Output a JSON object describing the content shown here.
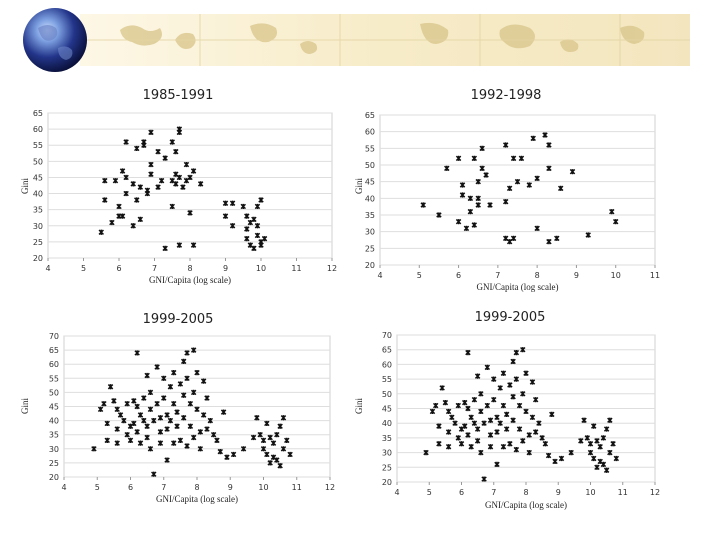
{
  "colors": {
    "banner": "#faf1d5",
    "globe_dark": "#0d1a55",
    "globe_light": "#8fb0e6",
    "marker": "#111111",
    "grid": "#dedede"
  },
  "banner": {
    "icon": "globe-icon"
  },
  "chart_data": [
    {
      "type": "scatter",
      "title": "1985-1991",
      "xlabel": "GNI/Capita (log scale)",
      "ylabel": "Gini",
      "xlim": [
        4,
        12
      ],
      "ylim": [
        20,
        65
      ],
      "xticks": [
        "4",
        "5",
        "6",
        "7",
        "8",
        "9",
        "10",
        "11",
        "12"
      ],
      "yticks": [
        "20",
        "25",
        "30",
        "35",
        "40",
        "45",
        "50",
        "55",
        "60",
        "65"
      ],
      "points": [
        [
          5.5,
          28
        ],
        [
          5.6,
          44
        ],
        [
          5.6,
          38
        ],
        [
          5.8,
          31
        ],
        [
          5.9,
          44
        ],
        [
          6.0,
          33
        ],
        [
          6.0,
          36
        ],
        [
          6.1,
          47
        ],
        [
          6.1,
          33
        ],
        [
          6.2,
          40
        ],
        [
          6.2,
          45
        ],
        [
          6.2,
          56
        ],
        [
          6.4,
          30
        ],
        [
          6.4,
          43
        ],
        [
          6.5,
          54
        ],
        [
          6.5,
          38
        ],
        [
          6.6,
          42
        ],
        [
          6.6,
          32
        ],
        [
          6.7,
          56
        ],
        [
          6.7,
          55
        ],
        [
          6.8,
          41
        ],
        [
          6.8,
          40
        ],
        [
          6.9,
          59
        ],
        [
          6.9,
          49
        ],
        [
          6.9,
          46
        ],
        [
          7.1,
          42
        ],
        [
          7.1,
          53
        ],
        [
          7.2,
          44
        ],
        [
          7.3,
          23
        ],
        [
          7.3,
          51
        ],
        [
          7.5,
          56
        ],
        [
          7.5,
          44
        ],
        [
          7.5,
          36
        ],
        [
          7.6,
          53
        ],
        [
          7.6,
          46
        ],
        [
          7.6,
          43
        ],
        [
          7.7,
          60
        ],
        [
          7.7,
          59
        ],
        [
          7.7,
          45
        ],
        [
          7.7,
          24
        ],
        [
          7.8,
          42
        ],
        [
          7.9,
          49
        ],
        [
          7.9,
          44
        ],
        [
          8.0,
          45
        ],
        [
          8.0,
          34
        ],
        [
          8.1,
          24
        ],
        [
          8.1,
          47
        ],
        [
          8.3,
          43
        ],
        [
          9.0,
          37
        ],
        [
          9.0,
          33
        ],
        [
          9.2,
          37
        ],
        [
          9.2,
          30
        ],
        [
          9.5,
          36
        ],
        [
          9.6,
          33
        ],
        [
          9.6,
          29
        ],
        [
          9.6,
          26
        ],
        [
          9.7,
          31
        ],
        [
          9.7,
          24
        ],
        [
          9.8,
          32
        ],
        [
          9.8,
          23
        ],
        [
          9.9,
          36
        ],
        [
          9.9,
          30
        ],
        [
          9.9,
          27
        ],
        [
          10.0,
          38
        ],
        [
          10.0,
          25
        ],
        [
          10.0,
          24
        ],
        [
          10.1,
          26
        ]
      ]
    },
    {
      "type": "scatter",
      "title": "1992-1998",
      "xlabel": "GNI/Capita (log scale)",
      "ylabel": "Gini",
      "xlim": [
        4,
        11
      ],
      "ylim": [
        20,
        65
      ],
      "xticks": [
        "4",
        "5",
        "6",
        "7",
        "8",
        "9",
        "10",
        "11"
      ],
      "yticks": [
        "20",
        "25",
        "30",
        "35",
        "40",
        "45",
        "50",
        "55",
        "60",
        "65"
      ],
      "points": [
        [
          5.1,
          38
        ],
        [
          5.5,
          35
        ],
        [
          5.7,
          49
        ],
        [
          6.0,
          33
        ],
        [
          6.0,
          52
        ],
        [
          6.1,
          44
        ],
        [
          6.1,
          41
        ],
        [
          6.2,
          31
        ],
        [
          6.3,
          40
        ],
        [
          6.3,
          36
        ],
        [
          6.4,
          32
        ],
        [
          6.4,
          52
        ],
        [
          6.5,
          45
        ],
        [
          6.5,
          40
        ],
        [
          6.5,
          38
        ],
        [
          6.6,
          55
        ],
        [
          6.6,
          49
        ],
        [
          6.7,
          47
        ],
        [
          6.8,
          38
        ],
        [
          7.2,
          39
        ],
        [
          7.2,
          56
        ],
        [
          7.2,
          28
        ],
        [
          7.3,
          27
        ],
        [
          7.3,
          43
        ],
        [
          7.4,
          52
        ],
        [
          7.4,
          28
        ],
        [
          7.5,
          45
        ],
        [
          7.6,
          52
        ],
        [
          7.8,
          44
        ],
        [
          7.9,
          58
        ],
        [
          8.0,
          46
        ],
        [
          8.0,
          31
        ],
        [
          8.2,
          59
        ],
        [
          8.3,
          56
        ],
        [
          8.3,
          49
        ],
        [
          8.3,
          27
        ],
        [
          8.5,
          28
        ],
        [
          8.6,
          43
        ],
        [
          8.9,
          48
        ],
        [
          9.3,
          29
        ],
        [
          9.9,
          36
        ],
        [
          10.0,
          33
        ]
      ]
    },
    {
      "type": "scatter",
      "title": "1999-2005",
      "xlabel": "GNI/Capita (log scale)",
      "ylabel": "Gini",
      "xlim": [
        4,
        12
      ],
      "ylim": [
        20,
        70
      ],
      "xticks": [
        "4",
        "5",
        "6",
        "7",
        "8",
        "9",
        "10",
        "11",
        "12"
      ],
      "yticks": [
        "20",
        "25",
        "30",
        "35",
        "40",
        "45",
        "50",
        "55",
        "60",
        "65",
        "70"
      ],
      "points": [
        [
          4.9,
          30
        ],
        [
          5.1,
          44
        ],
        [
          5.2,
          46
        ],
        [
          5.3,
          39
        ],
        [
          5.3,
          33
        ],
        [
          5.4,
          52
        ],
        [
          5.5,
          47
        ],
        [
          5.6,
          44
        ],
        [
          5.6,
          37
        ],
        [
          5.6,
          32
        ],
        [
          5.7,
          42
        ],
        [
          5.8,
          40
        ],
        [
          5.9,
          46
        ],
        [
          5.9,
          35
        ],
        [
          6.0,
          38
        ],
        [
          6.0,
          33
        ],
        [
          6.1,
          47
        ],
        [
          6.1,
          39
        ],
        [
          6.2,
          64
        ],
        [
          6.2,
          45
        ],
        [
          6.2,
          36
        ],
        [
          6.3,
          42
        ],
        [
          6.3,
          32
        ],
        [
          6.4,
          48
        ],
        [
          6.4,
          40
        ],
        [
          6.5,
          56
        ],
        [
          6.5,
          38
        ],
        [
          6.5,
          34
        ],
        [
          6.6,
          50
        ],
        [
          6.6,
          44
        ],
        [
          6.6,
          30
        ],
        [
          6.7,
          40
        ],
        [
          6.7,
          21
        ],
        [
          6.8,
          59
        ],
        [
          6.8,
          46
        ],
        [
          6.9,
          41
        ],
        [
          6.9,
          36
        ],
        [
          6.9,
          32
        ],
        [
          7.0,
          55
        ],
        [
          7.0,
          48
        ],
        [
          7.1,
          42
        ],
        [
          7.1,
          37
        ],
        [
          7.1,
          26
        ],
        [
          7.2,
          52
        ],
        [
          7.2,
          40
        ],
        [
          7.3,
          57
        ],
        [
          7.3,
          46
        ],
        [
          7.3,
          32
        ],
        [
          7.4,
          43
        ],
        [
          7.4,
          38
        ],
        [
          7.5,
          53
        ],
        [
          7.5,
          33
        ],
        [
          7.6,
          61
        ],
        [
          7.6,
          49
        ],
        [
          7.6,
          41
        ],
        [
          7.7,
          64
        ],
        [
          7.7,
          55
        ],
        [
          7.7,
          31
        ],
        [
          7.8,
          46
        ],
        [
          7.8,
          38
        ],
        [
          7.9,
          65
        ],
        [
          7.9,
          50
        ],
        [
          7.9,
          34
        ],
        [
          8.0,
          57
        ],
        [
          8.0,
          44
        ],
        [
          8.1,
          36
        ],
        [
          8.1,
          30
        ],
        [
          8.2,
          54
        ],
        [
          8.2,
          42
        ],
        [
          8.3,
          48
        ],
        [
          8.3,
          37
        ],
        [
          8.4,
          40
        ],
        [
          8.5,
          35
        ],
        [
          8.6,
          33
        ],
        [
          8.7,
          29
        ],
        [
          8.8,
          43
        ],
        [
          8.9,
          27
        ],
        [
          9.1,
          28
        ],
        [
          9.4,
          30
        ],
        [
          9.7,
          34
        ],
        [
          9.8,
          41
        ],
        [
          9.9,
          35
        ],
        [
          10.0,
          33
        ],
        [
          10.0,
          30
        ],
        [
          10.1,
          39
        ],
        [
          10.1,
          28
        ],
        [
          10.2,
          34
        ],
        [
          10.2,
          25
        ],
        [
          10.3,
          32
        ],
        [
          10.3,
          27
        ],
        [
          10.4,
          35
        ],
        [
          10.4,
          26
        ],
        [
          10.5,
          38
        ],
        [
          10.5,
          24
        ],
        [
          10.6,
          41
        ],
        [
          10.6,
          30
        ],
        [
          10.7,
          33
        ],
        [
          10.8,
          28
        ]
      ]
    },
    {
      "type": "scatter",
      "title": "1999-2005",
      "xlabel": "GNI/Capita (log scale)",
      "ylabel": "Gini",
      "xlim": [
        4,
        12
      ],
      "ylim": [
        20,
        70
      ],
      "xticks": [
        "4",
        "5",
        "6",
        "7",
        "8",
        "9",
        "10",
        "11",
        "12"
      ],
      "yticks": [
        "20",
        "25",
        "30",
        "35",
        "40",
        "45",
        "50",
        "55",
        "60",
        "65",
        "70"
      ],
      "points": [
        [
          4.9,
          30
        ],
        [
          5.1,
          44
        ],
        [
          5.2,
          46
        ],
        [
          5.3,
          39
        ],
        [
          5.3,
          33
        ],
        [
          5.4,
          52
        ],
        [
          5.5,
          47
        ],
        [
          5.6,
          44
        ],
        [
          5.6,
          37
        ],
        [
          5.6,
          32
        ],
        [
          5.7,
          42
        ],
        [
          5.8,
          40
        ],
        [
          5.9,
          46
        ],
        [
          5.9,
          35
        ],
        [
          6.0,
          38
        ],
        [
          6.0,
          33
        ],
        [
          6.1,
          47
        ],
        [
          6.1,
          39
        ],
        [
          6.2,
          64
        ],
        [
          6.2,
          45
        ],
        [
          6.2,
          36
        ],
        [
          6.3,
          42
        ],
        [
          6.3,
          32
        ],
        [
          6.4,
          48
        ],
        [
          6.4,
          40
        ],
        [
          6.5,
          56
        ],
        [
          6.5,
          38
        ],
        [
          6.5,
          34
        ],
        [
          6.6,
          50
        ],
        [
          6.6,
          44
        ],
        [
          6.6,
          30
        ],
        [
          6.7,
          40
        ],
        [
          6.7,
          21
        ],
        [
          6.8,
          59
        ],
        [
          6.8,
          46
        ],
        [
          6.9,
          41
        ],
        [
          6.9,
          36
        ],
        [
          6.9,
          32
        ],
        [
          7.0,
          55
        ],
        [
          7.0,
          48
        ],
        [
          7.1,
          42
        ],
        [
          7.1,
          37
        ],
        [
          7.1,
          26
        ],
        [
          7.2,
          52
        ],
        [
          7.2,
          40
        ],
        [
          7.3,
          57
        ],
        [
          7.3,
          46
        ],
        [
          7.3,
          32
        ],
        [
          7.4,
          43
        ],
        [
          7.4,
          38
        ],
        [
          7.5,
          53
        ],
        [
          7.5,
          33
        ],
        [
          7.6,
          61
        ],
        [
          7.6,
          49
        ],
        [
          7.6,
          41
        ],
        [
          7.7,
          64
        ],
        [
          7.7,
          55
        ],
        [
          7.7,
          31
        ],
        [
          7.8,
          46
        ],
        [
          7.8,
          38
        ],
        [
          7.9,
          65
        ],
        [
          7.9,
          50
        ],
        [
          7.9,
          34
        ],
        [
          8.0,
          57
        ],
        [
          8.0,
          44
        ],
        [
          8.1,
          36
        ],
        [
          8.1,
          30
        ],
        [
          8.2,
          54
        ],
        [
          8.2,
          42
        ],
        [
          8.3,
          48
        ],
        [
          8.3,
          37
        ],
        [
          8.4,
          40
        ],
        [
          8.5,
          35
        ],
        [
          8.6,
          33
        ],
        [
          8.7,
          29
        ],
        [
          8.8,
          43
        ],
        [
          8.9,
          27
        ],
        [
          9.1,
          28
        ],
        [
          9.4,
          30
        ],
        [
          9.7,
          34
        ],
        [
          9.8,
          41
        ],
        [
          9.9,
          35
        ],
        [
          10.0,
          33
        ],
        [
          10.0,
          30
        ],
        [
          10.1,
          39
        ],
        [
          10.1,
          28
        ],
        [
          10.2,
          34
        ],
        [
          10.2,
          25
        ],
        [
          10.3,
          32
        ],
        [
          10.3,
          27
        ],
        [
          10.4,
          35
        ],
        [
          10.4,
          26
        ],
        [
          10.5,
          38
        ],
        [
          10.5,
          24
        ],
        [
          10.6,
          41
        ],
        [
          10.6,
          30
        ],
        [
          10.7,
          33
        ],
        [
          10.8,
          28
        ]
      ]
    }
  ]
}
